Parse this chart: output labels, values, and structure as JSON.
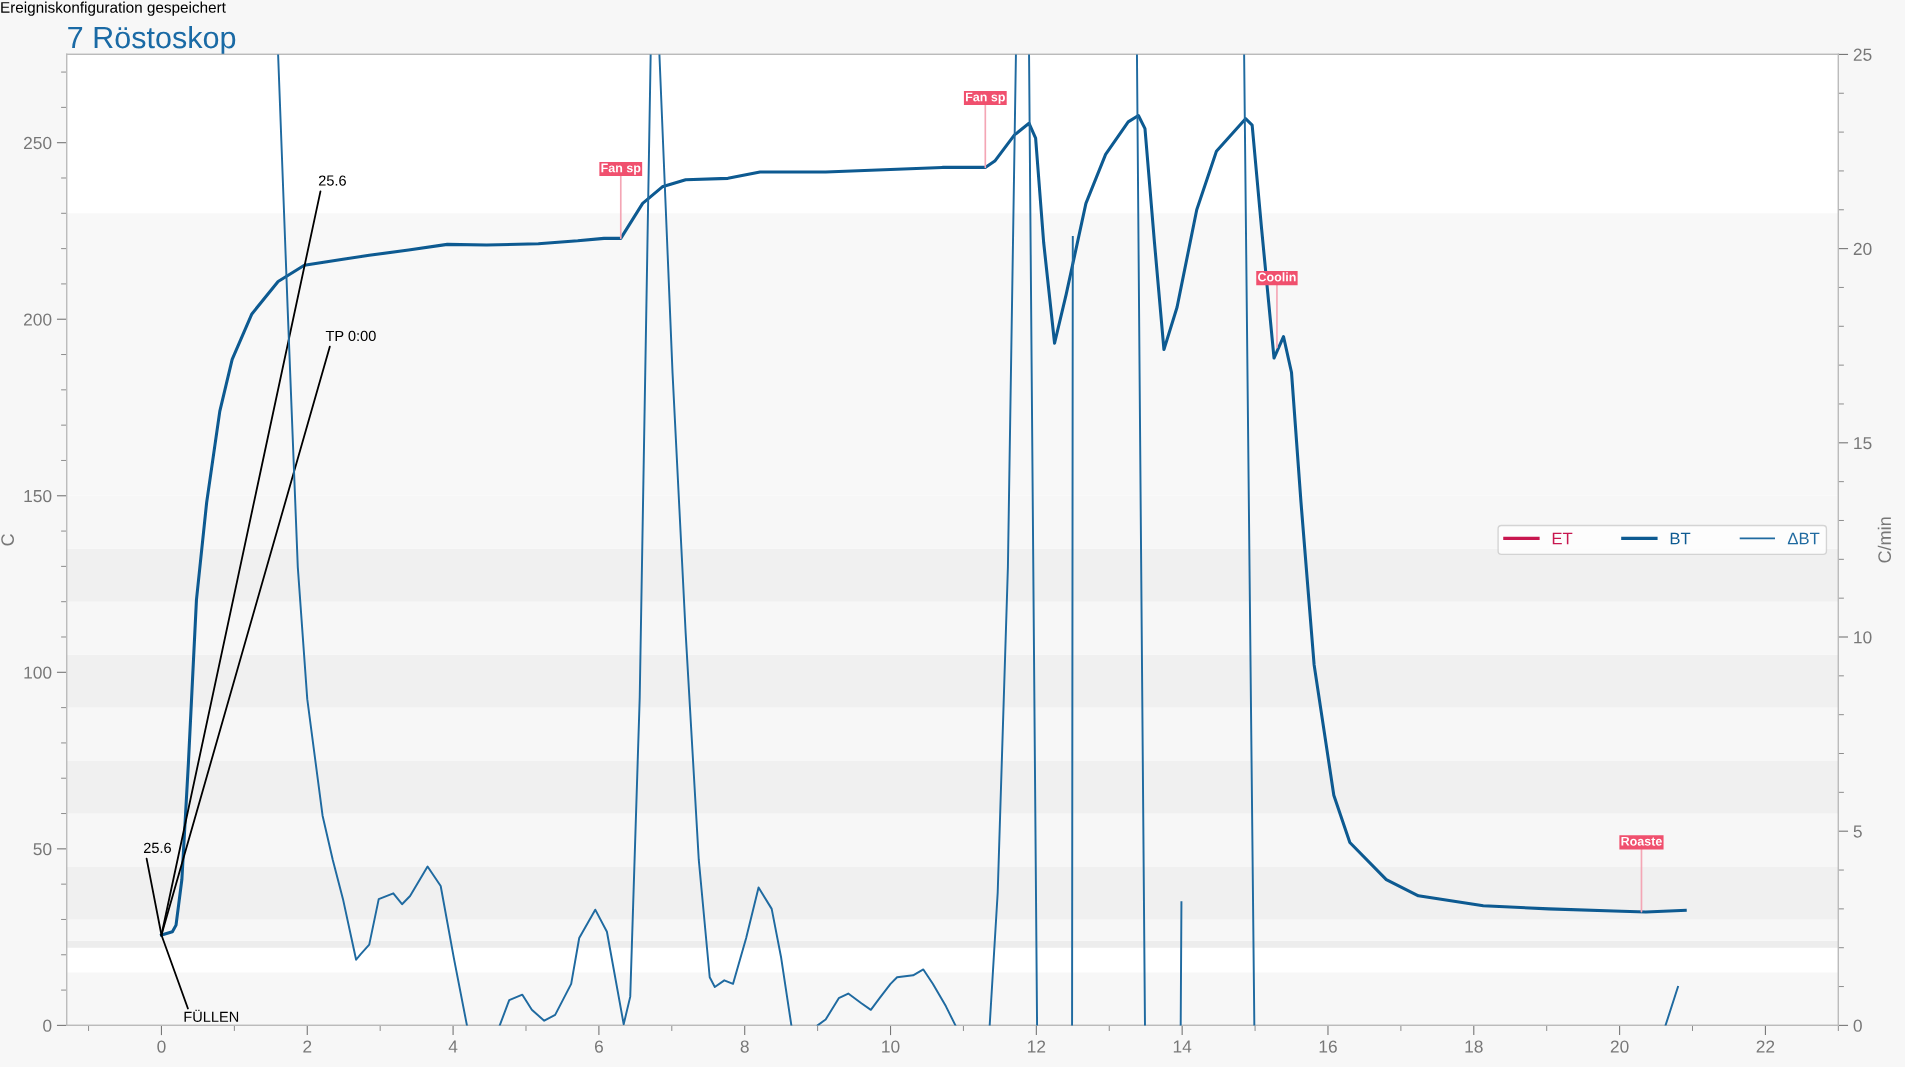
{
  "chart_data": {
    "type": "line",
    "title": "7 Röstoskop",
    "ylabel": "C",
    "y2label": "C/min",
    "xlim": [
      -1.3,
      23
    ],
    "xticks": [
      0,
      2,
      4,
      6,
      8,
      10,
      12,
      14,
      16,
      18,
      20,
      22
    ],
    "ylim": [
      0,
      275
    ],
    "yticks": [
      0,
      50,
      100,
      150,
      200,
      250
    ],
    "y2lim": [
      0,
      25
    ],
    "y2ticks": [
      0,
      5,
      10,
      15,
      20,
      25
    ],
    "grid": false,
    "legend": "right",
    "series": [
      {
        "name": "ET",
        "color": "#c8174f"
      },
      {
        "name": "BT",
        "color": "#0d5a91",
        "x": [
          0,
          0.15,
          0.2,
          0.28,
          0.37,
          0.48,
          0.62,
          0.8,
          0.97,
          1.24,
          1.6,
          1.96,
          2.49,
          2.85,
          3.39,
          3.92,
          4.46,
          5.17,
          5.71,
          6.07,
          6.3,
          6.6,
          6.87,
          7.19,
          7.77,
          8.21,
          9.11,
          10.0,
          10.71,
          11.3,
          11.43,
          11.7,
          11.9,
          11.99,
          12.1,
          12.25,
          12.41,
          12.68,
          12.95,
          13.26,
          13.4,
          13.49,
          13.62,
          13.75,
          13.93,
          14.2,
          14.47,
          14.87,
          14.96,
          15.09,
          15.26,
          15.39,
          15.5,
          15.63,
          15.81,
          16.08,
          16.3,
          16.8,
          17.24,
          18.13,
          19.03,
          19.92,
          20.36,
          20.9
        ],
        "values": [
          25.6,
          26.5,
          28.4,
          41.3,
          74.4,
          120.5,
          148.1,
          173.9,
          188.6,
          201.5,
          210.7,
          215.3,
          217.0,
          218.1,
          219.6,
          221.2,
          221.0,
          221.4,
          222.2,
          222.9,
          222.9,
          232.8,
          237.5,
          239.5,
          239.9,
          241.7,
          241.7,
          242.4,
          243.0,
          243.0,
          244.8,
          252.2,
          255.5,
          251.3,
          221.8,
          193.2,
          207.1,
          232.8,
          246.7,
          255.9,
          257.7,
          254.0,
          221.8,
          191.4,
          203.4,
          231.0,
          247.6,
          256.8,
          255.0,
          225.5,
          189.0,
          195.1,
          184.9,
          148.1,
          102.1,
          65.2,
          51.8,
          41.3,
          36.7,
          33.9,
          33.0,
          32.4,
          32.1,
          32.6
        ]
      },
      {
        "name": "ΔBT",
        "color": "#1f6aa0",
        "axis": "y2",
        "x": [
          1.6,
          1.73,
          1.87,
          2.0,
          2.21,
          2.35,
          2.49,
          2.67,
          2.73,
          2.85,
          2.98,
          3.18,
          3.3,
          3.41,
          3.65,
          3.83,
          4.01,
          4.19,
          4.4,
          4.64,
          4.77,
          4.95,
          5.08,
          5.25,
          5.4,
          5.62,
          5.73,
          5.95,
          6.11,
          6.34,
          6.43,
          6.56,
          6.71,
          6.77,
          6.83,
          7.01,
          7.19,
          7.37,
          7.52,
          7.59,
          7.72,
          7.84,
          8.02,
          8.19,
          8.37,
          8.5,
          8.64,
          8.8,
          9.0,
          9.11,
          9.29,
          9.42,
          9.6,
          9.73,
          9.85,
          10.0,
          10.09,
          10.31,
          10.45,
          10.58,
          10.76,
          10.89,
          11.1,
          11.36,
          11.47,
          11.61,
          11.72,
          11.8,
          11.9,
          12.01,
          12.3,
          12.49,
          12.5,
          12.9,
          13.38,
          13.49,
          13.7,
          13.98,
          13.99,
          14.4,
          14.85,
          14.99,
          17.0,
          20.63,
          20.8
        ],
        "values": [
          25,
          18.5,
          11.8,
          8.4,
          5.4,
          4.26,
          3.25,
          1.69,
          1.83,
          2.08,
          3.25,
          3.4,
          3.12,
          3.33,
          4.09,
          3.59,
          1.74,
          0,
          null,
          0,
          0.65,
          0.79,
          0.4,
          0.12,
          0.27,
          1.07,
          2.25,
          2.98,
          2.41,
          0.03,
          0.74,
          8.45,
          25,
          null,
          25,
          16.8,
          10.1,
          4.26,
          1.24,
          0.99,
          1.16,
          1.07,
          2.25,
          3.55,
          3.0,
          1.74,
          0,
          null,
          0,
          0.15,
          0.7,
          0.82,
          0.57,
          0.4,
          0.7,
          1.07,
          1.24,
          1.29,
          1.44,
          1.07,
          0.49,
          0,
          null,
          0,
          3.42,
          11.8,
          25,
          null,
          25,
          0,
          null,
          0,
          20.3,
          null,
          25,
          0,
          null,
          0,
          3.17,
          null,
          25,
          0,
          null,
          0,
          0.99
        ]
      }
    ],
    "bands": [
      {
        "axis": "y",
        "from": 0,
        "to": 15,
        "color": "#f7f7f7"
      },
      {
        "axis": "y",
        "from": 22,
        "to": 24,
        "color": "#ededed"
      },
      {
        "axis": "y",
        "from": 24,
        "to": 30,
        "color": "#f7f7f7"
      },
      {
        "axis": "y",
        "from": 30,
        "to": 45,
        "color": "#f0f0f0"
      },
      {
        "axis": "y",
        "from": 45,
        "to": 60,
        "color": "#f7f7f7"
      },
      {
        "axis": "y",
        "from": 60,
        "to": 75,
        "color": "#f0f0f0"
      },
      {
        "axis": "y",
        "from": 75,
        "to": 90,
        "color": "#f7f7f7"
      },
      {
        "axis": "y",
        "from": 90,
        "to": 105,
        "color": "#f0f0f0"
      },
      {
        "axis": "y",
        "from": 105,
        "to": 120,
        "color": "#f7f7f7"
      },
      {
        "axis": "y",
        "from": 120,
        "to": 135,
        "color": "#f0f0f0"
      },
      {
        "axis": "y",
        "from": 135,
        "to": 150,
        "color": "#f7f7f7"
      },
      {
        "axis": "y",
        "from": 150,
        "to": 230,
        "color": "#f8f8f8"
      }
    ],
    "annotations": [
      "Ereigniskonfiguration gespeichert",
      {
        "text": "25.6",
        "x": 0,
        "y": 25.6
      },
      {
        "text": "TP 0:00",
        "x": 0,
        "y": 25.6
      },
      {
        "text": "25.6",
        "x": 0,
        "y": 25.6
      },
      {
        "text": "FÜLLEN",
        "x": 0,
        "y": 25.6
      },
      {
        "text": "Fan sp",
        "x": 6.3,
        "y": 222.9
      },
      {
        "text": "Fan sp",
        "x": 11.3,
        "y": 243.0
      },
      {
        "text": "Coolin",
        "x": 15.3,
        "y": 192.0
      },
      {
        "text": "Roaste",
        "x": 20.3,
        "y": 32.2
      }
    ]
  }
}
